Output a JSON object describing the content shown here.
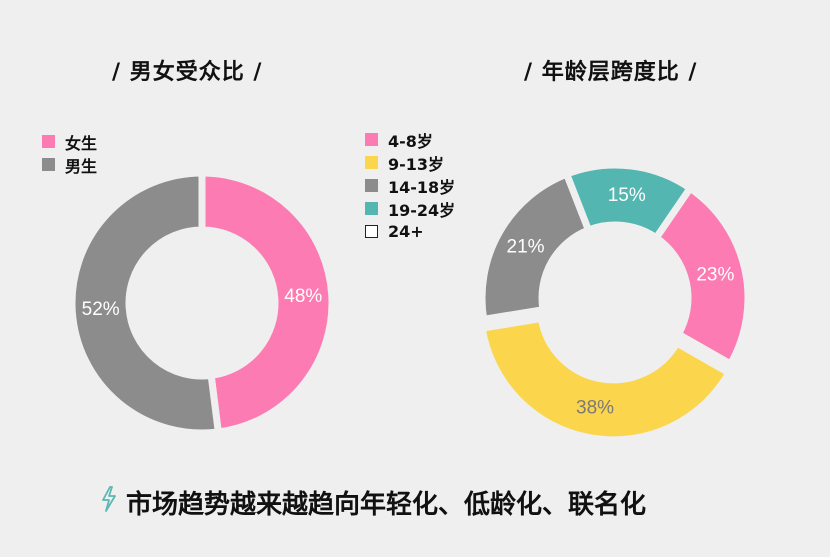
{
  "chart_data": [
    {
      "type": "pie",
      "title": "/ 男女受众比 /",
      "categories": [
        "女生",
        "男生"
      ],
      "values": [
        48,
        52
      ],
      "colors": [
        "#fc7bb2",
        "#8c8c8c"
      ],
      "data_labels": [
        "48%",
        "52%"
      ],
      "label_colors": [
        "#ffffff",
        "#ffffff"
      ],
      "legend_position": "top-left"
    },
    {
      "type": "pie",
      "title": "/ 年龄层跨度比 /",
      "categories": [
        "4-8岁",
        "9-13岁",
        "14-18岁",
        "19-24岁",
        "24+"
      ],
      "values": [
        23,
        38,
        21,
        15,
        0
      ],
      "colors": [
        "#fc7bb2",
        "#fbd54b",
        "#8c8c8c",
        "#54b6b0",
        "#ffffff"
      ],
      "data_labels": [
        "23%",
        "38%",
        "21%",
        "15%",
        ""
      ],
      "label_colors": [
        "#ffffff",
        "#7a7a7a",
        "#ffffff",
        "#ffffff",
        "#ffffff"
      ],
      "legend_position": "top-left"
    }
  ],
  "footer": {
    "text": "市场趋势越来越趋向年轻化、低龄化、联名化",
    "icon": "lightning-bolt-icon",
    "icon_color": "#5bb8b2"
  }
}
